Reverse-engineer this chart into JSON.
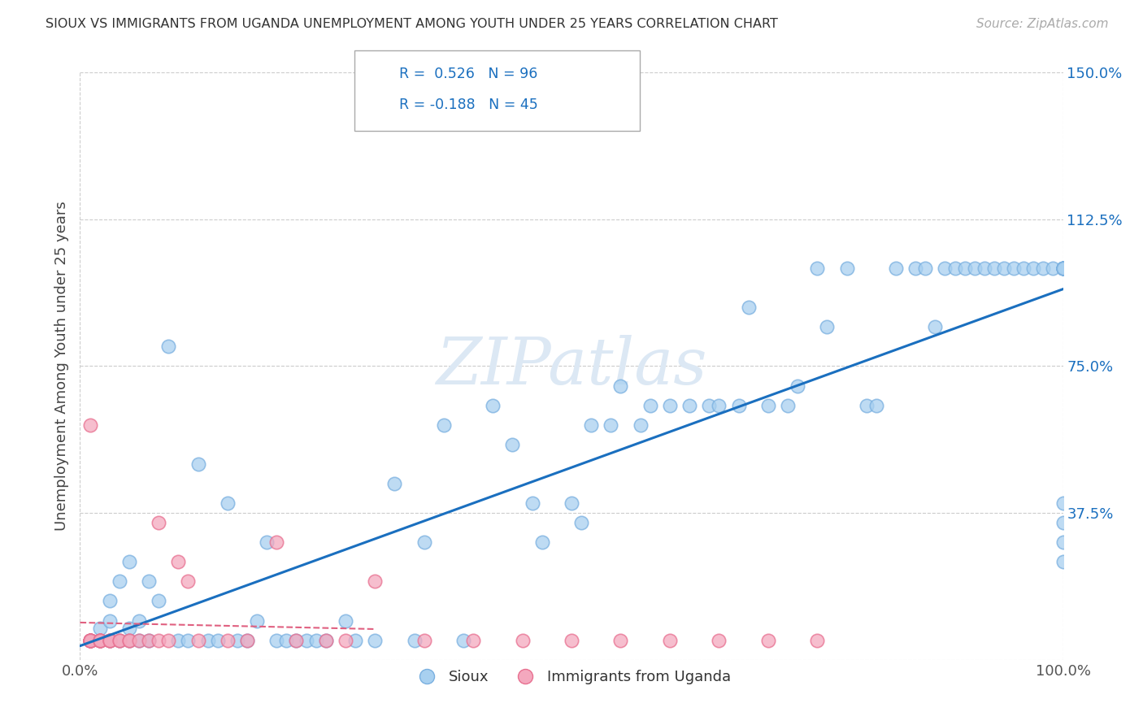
{
  "title": "SIOUX VS IMMIGRANTS FROM UGANDA UNEMPLOYMENT AMONG YOUTH UNDER 25 YEARS CORRELATION CHART",
  "source": "Source: ZipAtlas.com",
  "ylabel": "Unemployment Among Youth under 25 years",
  "xlim": [
    0,
    1.0
  ],
  "ylim": [
    0,
    1.5
  ],
  "xticks": [
    0,
    1.0
  ],
  "xticklabels": [
    "0.0%",
    "100.0%"
  ],
  "yticks": [
    0,
    0.375,
    0.75,
    1.125,
    1.5
  ],
  "yticklabels": [
    "",
    "37.5%",
    "75.0%",
    "112.5%",
    "150.0%"
  ],
  "sioux_color": "#a8d0f0",
  "sioux_edge_color": "#7ab0e0",
  "uganda_color": "#f4a8be",
  "uganda_edge_color": "#e87090",
  "sioux_line_color": "#1a6fbf",
  "uganda_line_color": "#e06080",
  "legend_text_color": "#1a6fbf",
  "watermark_color": "#dce8f4",
  "background_color": "#ffffff",
  "grid_color": "#cccccc",
  "title_color": "#333333",
  "source_color": "#aaaaaa",
  "ylabel_color": "#444444",
  "tick_color": "#1a6fbf",
  "sioux_x": [
    0.01,
    0.02,
    0.02,
    0.03,
    0.03,
    0.03,
    0.04,
    0.04,
    0.05,
    0.05,
    0.05,
    0.06,
    0.06,
    0.07,
    0.07,
    0.08,
    0.09,
    0.1,
    0.11,
    0.12,
    0.13,
    0.14,
    0.15,
    0.16,
    0.17,
    0.18,
    0.19,
    0.2,
    0.21,
    0.22,
    0.23,
    0.24,
    0.25,
    0.27,
    0.28,
    0.3,
    0.32,
    0.34,
    0.35,
    0.37,
    0.39,
    0.42,
    0.44,
    0.46,
    0.47,
    0.5,
    0.51,
    0.52,
    0.54,
    0.55,
    0.57,
    0.58,
    0.6,
    0.62,
    0.64,
    0.65,
    0.67,
    0.68,
    0.7,
    0.72,
    0.73,
    0.75,
    0.76,
    0.78,
    0.8,
    0.81,
    0.83,
    0.85,
    0.86,
    0.87,
    0.88,
    0.89,
    0.9,
    0.91,
    0.92,
    0.93,
    0.94,
    0.95,
    0.96,
    0.97,
    0.98,
    0.99,
    1.0,
    1.0,
    1.0,
    1.0,
    1.0,
    1.0,
    1.0,
    1.0,
    1.0,
    1.0,
    1.0,
    1.0,
    1.0,
    1.0
  ],
  "sioux_y": [
    0.05,
    0.05,
    0.08,
    0.05,
    0.1,
    0.15,
    0.05,
    0.2,
    0.05,
    0.08,
    0.25,
    0.05,
    0.1,
    0.05,
    0.2,
    0.15,
    0.8,
    0.05,
    0.05,
    0.5,
    0.05,
    0.05,
    0.4,
    0.05,
    0.05,
    0.1,
    0.3,
    0.05,
    0.05,
    0.05,
    0.05,
    0.05,
    0.05,
    0.1,
    0.05,
    0.05,
    0.45,
    0.05,
    0.3,
    0.6,
    0.05,
    0.65,
    0.55,
    0.4,
    0.3,
    0.4,
    0.35,
    0.6,
    0.6,
    0.7,
    0.6,
    0.65,
    0.65,
    0.65,
    0.65,
    0.65,
    0.65,
    0.9,
    0.65,
    0.65,
    0.7,
    1.0,
    0.85,
    1.0,
    0.65,
    0.65,
    1.0,
    1.0,
    1.0,
    0.85,
    1.0,
    1.0,
    1.0,
    1.0,
    1.0,
    1.0,
    1.0,
    1.0,
    1.0,
    1.0,
    1.0,
    1.0,
    0.25,
    0.3,
    0.35,
    0.4,
    1.0,
    1.0,
    1.0,
    1.0,
    1.0,
    1.0,
    1.0,
    1.0,
    1.0,
    1.0
  ],
  "uganda_x": [
    0.01,
    0.01,
    0.01,
    0.01,
    0.01,
    0.01,
    0.01,
    0.01,
    0.01,
    0.02,
    0.02,
    0.02,
    0.02,
    0.02,
    0.03,
    0.03,
    0.03,
    0.04,
    0.04,
    0.05,
    0.05,
    0.06,
    0.07,
    0.08,
    0.08,
    0.09,
    0.1,
    0.11,
    0.12,
    0.15,
    0.17,
    0.2,
    0.22,
    0.25,
    0.27,
    0.3,
    0.35,
    0.4,
    0.45,
    0.5,
    0.55,
    0.6,
    0.65,
    0.7,
    0.75
  ],
  "uganda_y": [
    0.05,
    0.05,
    0.05,
    0.05,
    0.05,
    0.05,
    0.05,
    0.05,
    0.6,
    0.05,
    0.05,
    0.05,
    0.05,
    0.05,
    0.05,
    0.05,
    0.05,
    0.05,
    0.05,
    0.05,
    0.05,
    0.05,
    0.05,
    0.05,
    0.35,
    0.05,
    0.25,
    0.2,
    0.05,
    0.05,
    0.05,
    0.3,
    0.05,
    0.05,
    0.05,
    0.2,
    0.05,
    0.05,
    0.05,
    0.05,
    0.05,
    0.05,
    0.05,
    0.05,
    0.05
  ]
}
